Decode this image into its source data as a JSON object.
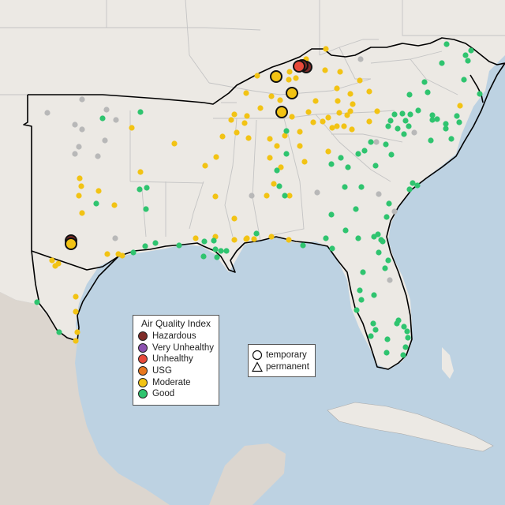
{
  "legend": {
    "title": "Air Quality Index",
    "categories": [
      {
        "label": "Hazardous",
        "color": "#7e2b28"
      },
      {
        "label": "Very Unhealthy",
        "color": "#8c52b0"
      },
      {
        "label": "Unhealthy",
        "color": "#e84a3a"
      },
      {
        "label": "USG",
        "color": "#e8781e"
      },
      {
        "label": "Moderate",
        "color": "#f2c314"
      },
      {
        "label": "Good",
        "color": "#2fc46f"
      }
    ]
  },
  "site_legend": {
    "temporary_label": "temporary",
    "permanent_label": "permanent"
  },
  "colors": {
    "water": "#bdd2e2",
    "land": "#ece9e4",
    "no_data": "#b8b8b8"
  }
}
